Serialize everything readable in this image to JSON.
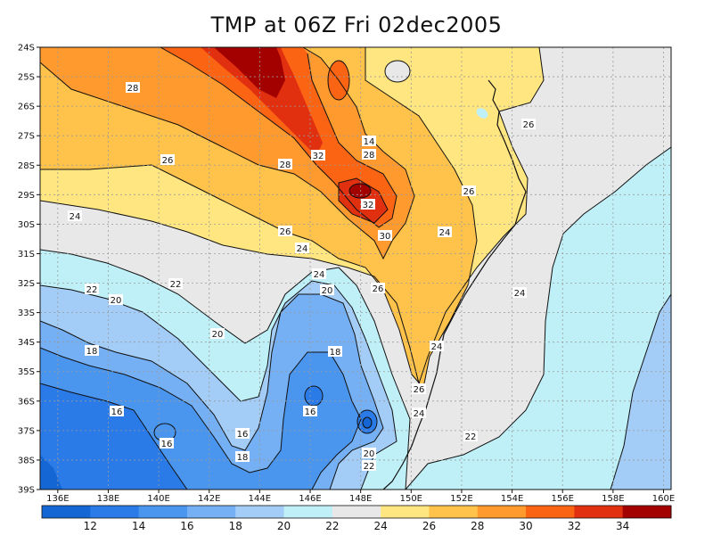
{
  "title": "TMP at 06Z Fri 02dec2005",
  "map": {
    "lon_labels": [
      "136E",
      "138E",
      "140E",
      "142E",
      "144E",
      "146E",
      "148E",
      "150E",
      "152E",
      "154E",
      "156E",
      "158E",
      "160E"
    ],
    "lat_labels": [
      "24S",
      "25S",
      "26S",
      "27S",
      "28S",
      "29S",
      "30S",
      "31S",
      "32S",
      "33S",
      "34S",
      "35S",
      "36S",
      "37S",
      "38S",
      "39S"
    ],
    "contour_labels": [
      "28",
      "26",
      "24",
      "22",
      "20",
      "18",
      "16",
      "16",
      "16",
      "18",
      "20",
      "22",
      "24",
      "26",
      "28",
      "32",
      "32",
      "30",
      "26",
      "24",
      "20",
      "18",
      "16",
      "14",
      "26",
      "24",
      "22",
      "24",
      "26",
      "24",
      "26",
      "28",
      "24",
      "22",
      "20"
    ]
  },
  "colorbar": {
    "labels": [
      "12",
      "14",
      "16",
      "18",
      "20",
      "22",
      "24",
      "26",
      "28",
      "30",
      "32",
      "34"
    ],
    "colors": [
      "#1466d4",
      "#2a7be8",
      "#4a95ee",
      "#74b0f3",
      "#a3cdf6",
      "#bff0f8",
      "#e8e8e8",
      "#ffe680",
      "#ffc24a",
      "#ff9a2e",
      "#fb6412",
      "#e03010",
      "#a30000"
    ]
  },
  "colors": {
    "land_outline": "#111111",
    "grid": "#9a9a9a"
  }
}
